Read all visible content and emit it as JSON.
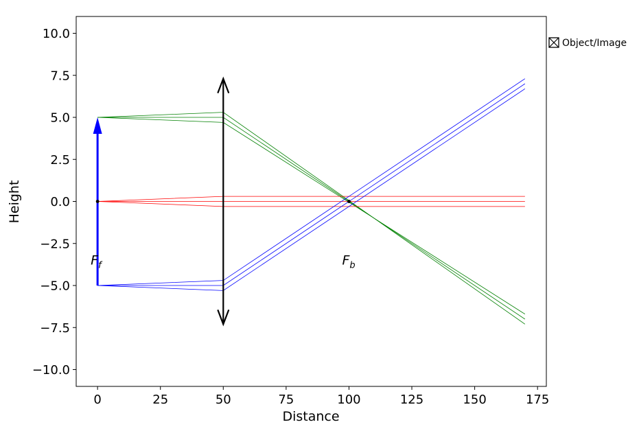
{
  "chart_data": {
    "type": "line",
    "xlabel": "Distance",
    "ylabel": "Height",
    "xlim": [
      -8.5,
      178.5
    ],
    "ylim": [
      -11,
      11
    ],
    "x_ticks": [
      0,
      25,
      50,
      75,
      100,
      125,
      150,
      175
    ],
    "y_ticks": [
      10.0,
      7.5,
      5.0,
      2.5,
      0.0,
      -2.5,
      -5.0,
      -7.5,
      -10.0
    ],
    "legend": {
      "label": "Object/Image",
      "placement": "outside-upper-right"
    },
    "grid": false,
    "object": {
      "x": 0,
      "y_start": -5,
      "y_end": 5,
      "color": "#0000ff"
    },
    "lens": {
      "x": 50,
      "y_top": 7.3,
      "y_bottom": -7.3,
      "color": "#000000"
    },
    "focal_points": [
      {
        "name": "Ff",
        "base": "F",
        "subscript": "f",
        "x": 0,
        "y": 0,
        "label_y": -3.5
      },
      {
        "name": "Fb",
        "base": "F",
        "subscript": "b",
        "x": 100,
        "y": 0,
        "label_y": -3.5
      }
    ],
    "series": [
      {
        "color": "#008000",
        "points": [
          [
            0,
            5
          ],
          [
            50,
            5.3
          ],
          [
            170,
            -7.3
          ]
        ]
      },
      {
        "color": "#008000",
        "points": [
          [
            0,
            5
          ],
          [
            50,
            5.0
          ],
          [
            170,
            -7.0
          ]
        ]
      },
      {
        "color": "#008000",
        "points": [
          [
            0,
            5
          ],
          [
            50,
            4.7
          ],
          [
            170,
            -6.7
          ]
        ]
      },
      {
        "color": "#ff0000",
        "points": [
          [
            0,
            0
          ],
          [
            50,
            0.3
          ],
          [
            170,
            0.3
          ]
        ]
      },
      {
        "color": "#ff0000",
        "points": [
          [
            0,
            0
          ],
          [
            50,
            0.0
          ],
          [
            170,
            0.0
          ]
        ]
      },
      {
        "color": "#ff0000",
        "points": [
          [
            0,
            0
          ],
          [
            50,
            -0.3
          ],
          [
            170,
            -0.3
          ]
        ]
      },
      {
        "color": "#0000ff",
        "points": [
          [
            0,
            -5
          ],
          [
            50,
            -4.7
          ],
          [
            170,
            7.3
          ]
        ]
      },
      {
        "color": "#0000ff",
        "points": [
          [
            0,
            -5
          ],
          [
            50,
            -5.0
          ],
          [
            170,
            7.0
          ]
        ]
      },
      {
        "color": "#0000ff",
        "points": [
          [
            0,
            -5
          ],
          [
            50,
            -5.3
          ],
          [
            170,
            6.7
          ]
        ]
      }
    ]
  }
}
